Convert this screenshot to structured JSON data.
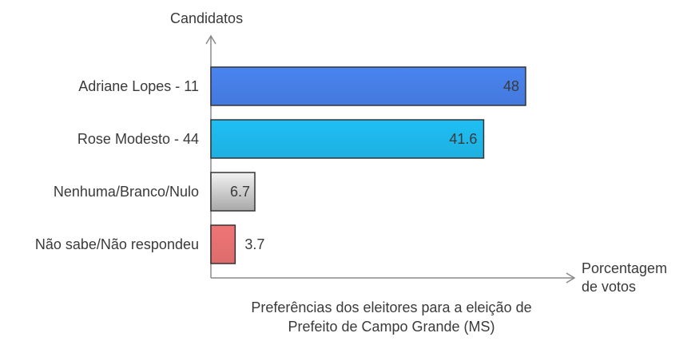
{
  "chart_data": {
    "type": "bar",
    "orientation": "horizontal",
    "categories": [
      "Adriane Lopes - 11",
      "Rose Modesto - 44",
      "Nenhuma/Branco/Nulo",
      "Não sabe/Não respondeu"
    ],
    "values": [
      48,
      41.6,
      6.7,
      3.7
    ],
    "value_labels": [
      "48",
      "41.6",
      "6.7",
      "3.7"
    ],
    "colors": [
      "#4a84f0",
      "#1fbff4",
      "#c4c4c4",
      "#f07575"
    ],
    "ylabel": "Candidatos",
    "xlabel_line1": "Porcentagem",
    "xlabel_line2": "de votos",
    "caption_line1": "Preferências dos eleitores para a eleição de",
    "caption_line2": "Prefeito de Campo Grande (MS)",
    "xlim": [
      0,
      48
    ],
    "grid": false,
    "legend": "none"
  }
}
